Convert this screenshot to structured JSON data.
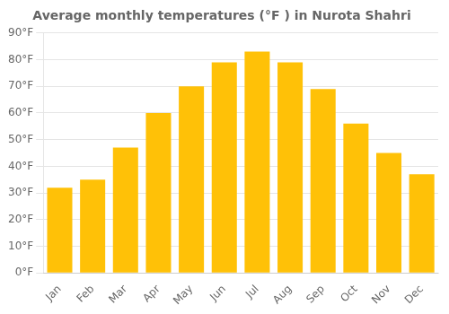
{
  "chart_data": {
    "type": "bar",
    "title": "Average monthly temperatures (°F ) in Nurota Shahri",
    "categories": [
      "Jan",
      "Feb",
      "Mar",
      "Apr",
      "May",
      "Jun",
      "Jul",
      "Aug",
      "Sep",
      "Oct",
      "Nov",
      "Dec"
    ],
    "values": [
      32,
      35,
      47,
      60,
      70,
      79,
      83,
      79,
      69,
      56,
      45,
      37
    ],
    "color": "#FFC107",
    "ylim": [
      0,
      90
    ],
    "yticks": [
      {
        "value": 0,
        "label": "0°F"
      },
      {
        "value": 10,
        "label": "10°F"
      },
      {
        "value": 20,
        "label": "20°F"
      },
      {
        "value": 30,
        "label": "30°F"
      },
      {
        "value": 40,
        "label": "40°F"
      },
      {
        "value": 50,
        "label": "50°F"
      },
      {
        "value": 60,
        "label": "60°F"
      },
      {
        "value": 70,
        "label": "70°F"
      },
      {
        "value": 80,
        "label": "80°F"
      },
      {
        "value": 90,
        "label": "90°F"
      }
    ],
    "grid": true
  }
}
